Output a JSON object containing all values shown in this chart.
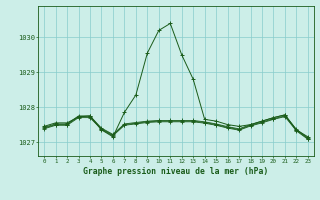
{
  "title": "Graphe pression niveau de la mer (hPa)",
  "background_color": "#cceee8",
  "line_color": "#1a5c1a",
  "grid_color": "#88cccc",
  "x_ticks": [
    0,
    1,
    2,
    3,
    4,
    5,
    6,
    7,
    8,
    9,
    10,
    11,
    12,
    13,
    14,
    15,
    16,
    17,
    18,
    19,
    20,
    21,
    22,
    23
  ],
  "y_ticks": [
    1027,
    1028,
    1029,
    1030
  ],
  "ylim": [
    1026.6,
    1030.9
  ],
  "xlim": [
    -0.5,
    23.5
  ],
  "series_main": [
    1027.45,
    1027.55,
    1027.55,
    1027.72,
    1027.75,
    1027.35,
    1027.15,
    1027.85,
    1028.35,
    1029.55,
    1030.2,
    1030.4,
    1029.5,
    1028.8,
    1027.65,
    1027.6,
    1027.5,
    1027.45,
    1027.5,
    1027.6,
    1027.7,
    1027.78,
    1027.35,
    1027.15
  ],
  "series_flat1": [
    1027.42,
    1027.52,
    1027.52,
    1027.75,
    1027.75,
    1027.4,
    1027.22,
    1027.52,
    1027.56,
    1027.6,
    1027.62,
    1027.62,
    1027.62,
    1027.62,
    1027.58,
    1027.52,
    1027.44,
    1027.38,
    1027.5,
    1027.6,
    1027.7,
    1027.78,
    1027.36,
    1027.12
  ],
  "series_flat2": [
    1027.4,
    1027.5,
    1027.5,
    1027.73,
    1027.72,
    1027.38,
    1027.2,
    1027.5,
    1027.54,
    1027.58,
    1027.6,
    1027.6,
    1027.6,
    1027.6,
    1027.56,
    1027.5,
    1027.42,
    1027.36,
    1027.48,
    1027.57,
    1027.67,
    1027.75,
    1027.34,
    1027.1
  ],
  "series_flat3": [
    1027.38,
    1027.48,
    1027.48,
    1027.7,
    1027.7,
    1027.36,
    1027.18,
    1027.48,
    1027.52,
    1027.56,
    1027.58,
    1027.58,
    1027.58,
    1027.58,
    1027.54,
    1027.48,
    1027.4,
    1027.34,
    1027.46,
    1027.55,
    1027.65,
    1027.73,
    1027.32,
    1027.08
  ]
}
